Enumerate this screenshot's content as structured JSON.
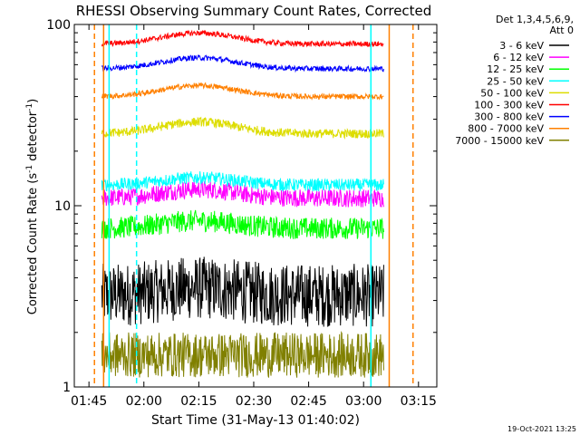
{
  "chart_data": {
    "type": "line",
    "title": "RHESSI Observing Summary Count Rates, Corrected",
    "xlabel": "Start Time (31-May-13 01:40:02)",
    "ylabel_main": "Corrected Count Rate (s",
    "ylabel_sup1": "-1",
    "ylabel_mid": " detector",
    "ylabel_sup2": "-1",
    "ylabel_end": ")",
    "y_scale": "log",
    "ylim": [
      1,
      100
    ],
    "y_ticks": [
      {
        "value": 1,
        "label": "1"
      },
      {
        "value": 10,
        "label": "10"
      },
      {
        "value": 100,
        "label": "100"
      }
    ],
    "xlim_min": [
      101,
      200
    ],
    "x_ticks": [
      {
        "value": 105,
        "label": "01:45"
      },
      {
        "value": 120,
        "label": "02:00"
      },
      {
        "value": 135,
        "label": "02:15"
      },
      {
        "value": 150,
        "label": "02:30"
      },
      {
        "value": 165,
        "label": "02:45"
      },
      {
        "value": 180,
        "label": "03:00"
      },
      {
        "value": 195,
        "label": "03:15"
      }
    ],
    "legend": {
      "placement": "right",
      "header_line1": "Det 1,3,4,5,6,9,",
      "header_line2": "Att 0"
    },
    "footer_date": "19-Oct-2021 13:25",
    "series": [
      {
        "name": "3 - 6 keV",
        "color": "#000000",
        "level": 3.2,
        "start": 108.5,
        "end": 185.5,
        "noise": 0.35,
        "hump": 0.1
      },
      {
        "name": "6 - 12 keV",
        "color": "#ff00ff",
        "level": 11.0,
        "start": 108.5,
        "end": 185.5,
        "noise": 0.1,
        "hump": 0.12
      },
      {
        "name": "12 - 25 keV",
        "color": "#00ff00",
        "level": 7.5,
        "start": 108.5,
        "end": 185.5,
        "noise": 0.12,
        "hump": 0.1
      },
      {
        "name": "25 - 50 keV",
        "color": "#00ffff",
        "level": 13.0,
        "start": 108.5,
        "end": 185.5,
        "noise": 0.07,
        "hump": 0.1
      },
      {
        "name": "50 - 100 keV",
        "color": "#dddd00",
        "level": 25.0,
        "start": 108.5,
        "end": 185.5,
        "noise": 0.05,
        "hump": 0.16
      },
      {
        "name": "100 - 300 keV",
        "color": "#ff0000",
        "level": 78.0,
        "start": 108.5,
        "end": 185.5,
        "noise": 0.03,
        "hump": 0.15
      },
      {
        "name": "300 - 800 keV",
        "color": "#0000ff",
        "level": 57.0,
        "start": 108.5,
        "end": 185.5,
        "noise": 0.03,
        "hump": 0.15
      },
      {
        "name": "800 - 7000 keV",
        "color": "#ff8000",
        "level": 40.0,
        "start": 108.5,
        "end": 185.5,
        "noise": 0.03,
        "hump": 0.15
      },
      {
        "name": "7000 - 15000 keV",
        "color": "#808000",
        "level": 1.5,
        "start": 108.5,
        "end": 185.5,
        "noise": 0.25,
        "hump": 0.0
      }
    ],
    "vertical_lines": [
      {
        "x": 106.5,
        "color": "#ff8000",
        "dash": true
      },
      {
        "x": 109.0,
        "color": "#ff8000",
        "dash": false
      },
      {
        "x": 110.5,
        "color": "#00ffff",
        "dash": false
      },
      {
        "x": 118.0,
        "color": "#00ffff",
        "dash": true
      },
      {
        "x": 182.0,
        "color": "#00ffff",
        "dash": false
      },
      {
        "x": 187.0,
        "color": "#ff8000",
        "dash": false
      },
      {
        "x": 193.5,
        "color": "#ff8000",
        "dash": true
      }
    ]
  }
}
